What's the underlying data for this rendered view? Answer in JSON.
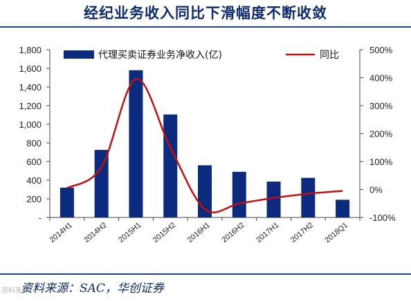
{
  "title": "经纪业务收入同比下滑幅度不断收敛",
  "source": "资料来源：SAC，华创证券",
  "watermark": "资料来源",
  "colors": {
    "bar": "#0c2a7e",
    "line": "#c01010",
    "title": "#0e2a70"
  },
  "chart_data": {
    "type": "bar",
    "categories": [
      "2014H1",
      "2014H2",
      "2015H1",
      "2015H2",
      "2016H1",
      "2016H2",
      "2017H1",
      "2017H2",
      "2018Q1"
    ],
    "series": [
      {
        "name": "代理买卖证券业务净收入(亿)",
        "type": "bar",
        "axis": "left",
        "values": [
          320,
          725,
          1580,
          1105,
          560,
          490,
          385,
          425,
          190
        ]
      },
      {
        "name": "同比",
        "type": "line",
        "axis": "right",
        "values": [
          5,
          80,
          395,
          150,
          -70,
          -50,
          -30,
          -15,
          -5
        ]
      }
    ],
    "left_axis": {
      "ylim": [
        0,
        1800
      ],
      "ticks": [
        0,
        200,
        400,
        600,
        800,
        1000,
        1200,
        1400,
        1600,
        1800
      ],
      "tick_labels": [
        "-",
        "200",
        "400",
        "600",
        "800",
        "1,000",
        "1,200",
        "1,400",
        "1,600",
        "1,800"
      ]
    },
    "right_axis": {
      "ylim": [
        -100,
        500
      ],
      "ticks": [
        -100,
        0,
        100,
        200,
        300,
        400,
        500
      ],
      "tick_labels": [
        "-100%",
        "0%",
        "100%",
        "200%",
        "300%",
        "400%",
        "500%"
      ]
    },
    "legend": {
      "placement": "top",
      "labels": [
        "代理买卖证券业务净收入(亿)",
        "同比"
      ]
    },
    "grid": false
  }
}
